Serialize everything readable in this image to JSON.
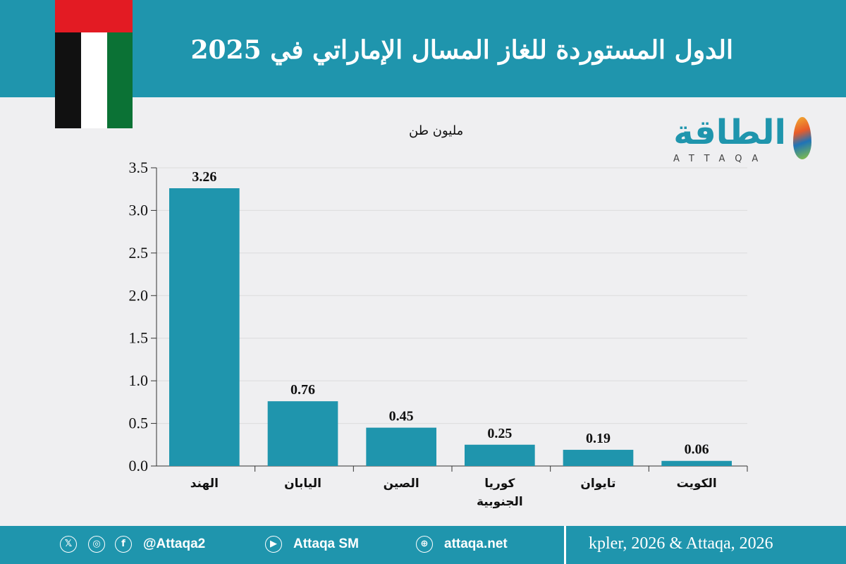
{
  "header": {
    "title": "الدول المستوردة للغاز المسال الإماراتي في 2025"
  },
  "logo": {
    "arabic": "الطاقة",
    "english": "ATTAQA"
  },
  "chart_data": {
    "type": "bar",
    "ylabel": "مليون طن",
    "categories": [
      "الهند",
      "اليابان",
      "الصين",
      "كوريا الجنوبية",
      "تايوان",
      "الكويت"
    ],
    "values": [
      3.26,
      0.76,
      0.45,
      0.25,
      0.19,
      0.06
    ],
    "data_labels": [
      "3.26",
      "0.76",
      "0.45",
      "0.25",
      "0.19",
      "0.06"
    ],
    "ylim": [
      0,
      3.5
    ],
    "yticks": [
      "0.0",
      "0.5",
      "1.0",
      "1.5",
      "2.0",
      "2.5",
      "3.0",
      "3.5"
    ],
    "grid": true,
    "bar_color": "#1f95ad"
  },
  "footer": {
    "icons": [
      "x-icon",
      "instagram-icon",
      "facebook-icon",
      "youtube-icon",
      "web-icon"
    ],
    "handle": "@Attaqa2",
    "youtube": "Attaqa SM",
    "website": "attaqa.net",
    "source": "kpler, 2026 & Attaqa, 2026"
  },
  "colors": {
    "brand": "#1f95ad",
    "background": "#efeff1"
  }
}
